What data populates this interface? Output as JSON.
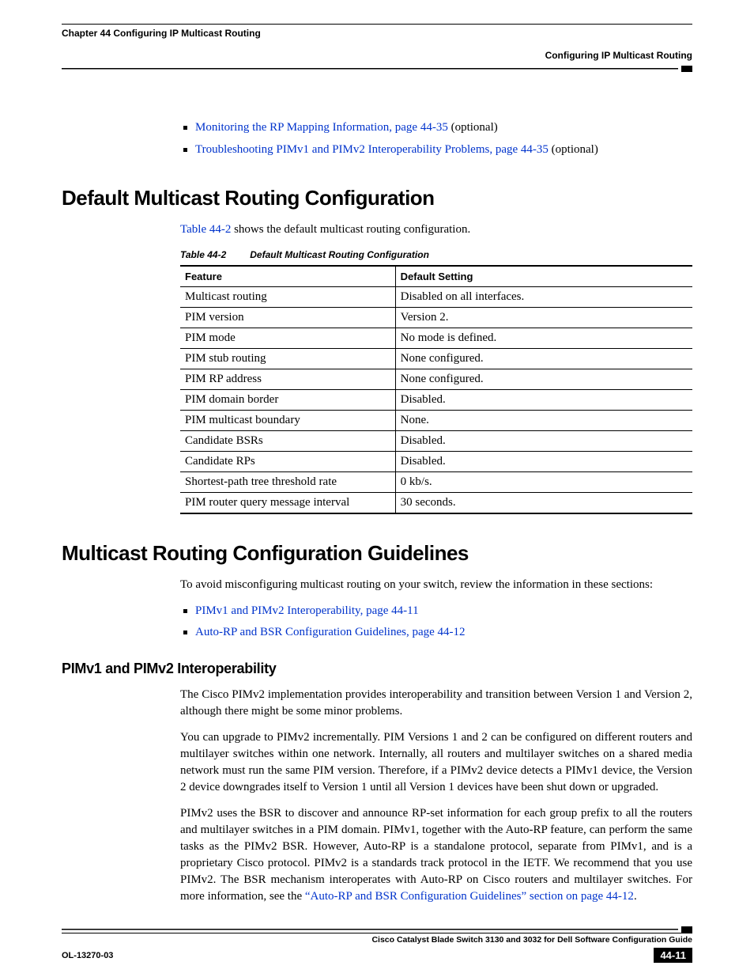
{
  "header": {
    "chapter_line": "Chapter 44      Configuring IP Multicast Routing",
    "sub_right": "Configuring IP Multicast Routing"
  },
  "top_bullets": [
    {
      "link_text": "Monitoring the RP Mapping Information, page 44-35",
      "trail": " (optional)"
    },
    {
      "link_text": "Troubleshooting PIMv1 and PIMv2 Interoperability Problems, page 44-35",
      "trail": " (optional)"
    }
  ],
  "section1": {
    "title": "Default Multicast Routing Configuration",
    "intro_prefix": "Table 44-2",
    "intro_rest": " shows the default multicast routing configuration.",
    "table_caption_num": "Table 44-2",
    "table_caption_title": "Default Multicast Routing Configuration",
    "columns": [
      "Feature",
      "Default Setting"
    ],
    "rows": [
      [
        "Multicast routing",
        "Disabled on all interfaces."
      ],
      [
        "PIM version",
        "Version 2."
      ],
      [
        "PIM mode",
        "No mode is defined."
      ],
      [
        "PIM stub routing",
        "None configured."
      ],
      [
        "PIM RP address",
        "None configured."
      ],
      [
        "PIM domain border",
        "Disabled."
      ],
      [
        "PIM multicast boundary",
        "None."
      ],
      [
        "Candidate BSRs",
        "Disabled."
      ],
      [
        "Candidate RPs",
        "Disabled."
      ],
      [
        "Shortest-path tree threshold rate",
        "0 kb/s."
      ],
      [
        "PIM router query message interval",
        "30 seconds."
      ]
    ]
  },
  "section2": {
    "title": "Multicast Routing Configuration Guidelines",
    "intro": "To avoid misconfiguring multicast routing on your switch, review the information in these sections:",
    "bullets": [
      "PIMv1 and PIMv2 Interoperability, page 44-11",
      "Auto-RP and BSR Configuration Guidelines, page 44-12"
    ],
    "sub_title": "PIMv1 and PIMv2 Interoperability",
    "p1": "The Cisco PIMv2 implementation provides interoperability and transition between Version 1 and Version 2, although there might be some minor problems.",
    "p2": "You can upgrade to PIMv2 incrementally. PIM Versions 1 and 2 can be configured on different routers and multilayer switches within one network. Internally, all routers and multilayer switches on a shared media network must run the same PIM version. Therefore, if a PIMv2 device detects a PIMv1 device, the Version 2 device downgrades itself to Version 1 until all Version 1 devices have been shut down or upgraded.",
    "p3_a": "PIMv2 uses the BSR to discover and announce RP-set information for each group prefix to all the routers and multilayer switches in a PIM domain. PIMv1, together with the Auto-RP feature, can perform the same tasks as the PIMv2 BSR. However, Auto-RP is a standalone protocol, separate from PIMv1, and is a proprietary Cisco protocol. PIMv2 is a standards track protocol in the IETF. We recommend that you use PIMv2. The BSR mechanism interoperates with Auto-RP on Cisco routers and multilayer switches. For more information, see the ",
    "p3_link": "“Auto-RP and BSR Configuration Guidelines” section on page 44-12",
    "p3_b": "."
  },
  "footer": {
    "guide": "Cisco Catalyst Blade Switch 3130 and 3032 for Dell Software Configuration Guide",
    "doc_id": "OL-13270-03",
    "page_num": "44-11"
  }
}
